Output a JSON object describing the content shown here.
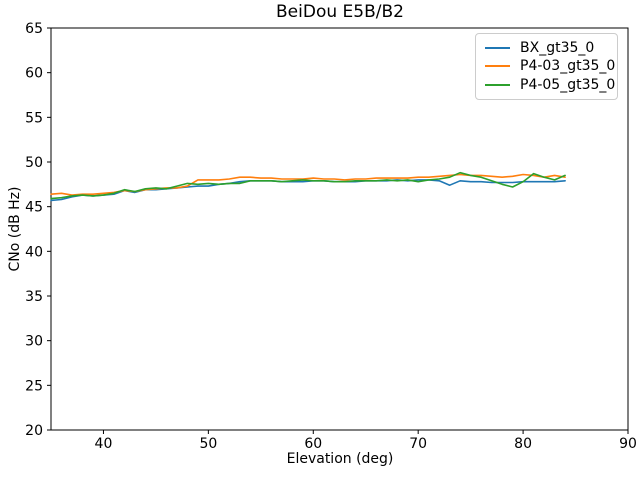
{
  "chart_data": {
    "type": "line",
    "title": "BeiDou E5B/B2",
    "xlabel": "Elevation (deg)",
    "ylabel": "CNo (dB Hz)",
    "xlim": [
      35,
      90
    ],
    "ylim": [
      20,
      65
    ],
    "xticks": [
      40,
      50,
      60,
      70,
      80,
      90
    ],
    "yticks": [
      20,
      25,
      30,
      35,
      40,
      45,
      50,
      55,
      60,
      65
    ],
    "grid": false,
    "legend_position": "upper right",
    "x": [
      35,
      36,
      37,
      38,
      39,
      40,
      41,
      42,
      43,
      44,
      45,
      46,
      47,
      48,
      49,
      50,
      51,
      52,
      53,
      54,
      55,
      56,
      57,
      58,
      59,
      60,
      61,
      62,
      63,
      64,
      65,
      66,
      67,
      68,
      69,
      70,
      71,
      72,
      73,
      74,
      75,
      76,
      77,
      78,
      79,
      80,
      81,
      82,
      83,
      84
    ],
    "series": [
      {
        "name": "BX_gt35_0",
        "color": "#1f77b4",
        "values": [
          45.7,
          45.8,
          46.1,
          46.3,
          46.2,
          46.3,
          46.4,
          46.8,
          46.6,
          46.9,
          46.9,
          47.0,
          47.1,
          47.2,
          47.3,
          47.3,
          47.5,
          47.6,
          47.8,
          47.9,
          47.9,
          47.9,
          47.8,
          47.8,
          47.8,
          47.9,
          47.9,
          47.8,
          47.8,
          47.8,
          47.9,
          47.9,
          47.9,
          48.0,
          47.9,
          48.0,
          48.0,
          47.9,
          47.4,
          47.9,
          47.8,
          47.8,
          47.7,
          47.7,
          47.7,
          47.8,
          47.8,
          47.8,
          47.8,
          47.9
        ]
      },
      {
        "name": "P4-03_gt35_0",
        "color": "#ff7f0e",
        "values": [
          46.4,
          46.5,
          46.3,
          46.4,
          46.4,
          46.5,
          46.6,
          46.8,
          46.7,
          46.9,
          47.0,
          47.1,
          47.1,
          47.3,
          48.0,
          48.0,
          48.0,
          48.1,
          48.3,
          48.3,
          48.2,
          48.2,
          48.1,
          48.1,
          48.1,
          48.2,
          48.1,
          48.1,
          48.0,
          48.1,
          48.1,
          48.2,
          48.2,
          48.2,
          48.2,
          48.3,
          48.3,
          48.4,
          48.5,
          48.6,
          48.5,
          48.5,
          48.4,
          48.3,
          48.4,
          48.6,
          48.5,
          48.3,
          48.5,
          48.3
        ]
      },
      {
        "name": "P4-05_gt35_0",
        "color": "#2ca02c",
        "values": [
          45.9,
          46.0,
          46.2,
          46.3,
          46.2,
          46.3,
          46.5,
          46.9,
          46.7,
          47.0,
          47.1,
          47.0,
          47.3,
          47.6,
          47.5,
          47.6,
          47.5,
          47.6,
          47.6,
          47.9,
          47.9,
          47.9,
          47.8,
          47.9,
          48.0,
          47.9,
          47.9,
          47.8,
          47.8,
          47.9,
          47.9,
          47.9,
          48.0,
          47.9,
          48.0,
          47.8,
          48.0,
          48.1,
          48.3,
          48.8,
          48.5,
          48.3,
          47.9,
          47.5,
          47.2,
          47.8,
          48.7,
          48.3,
          48.0,
          48.5
        ]
      }
    ]
  }
}
